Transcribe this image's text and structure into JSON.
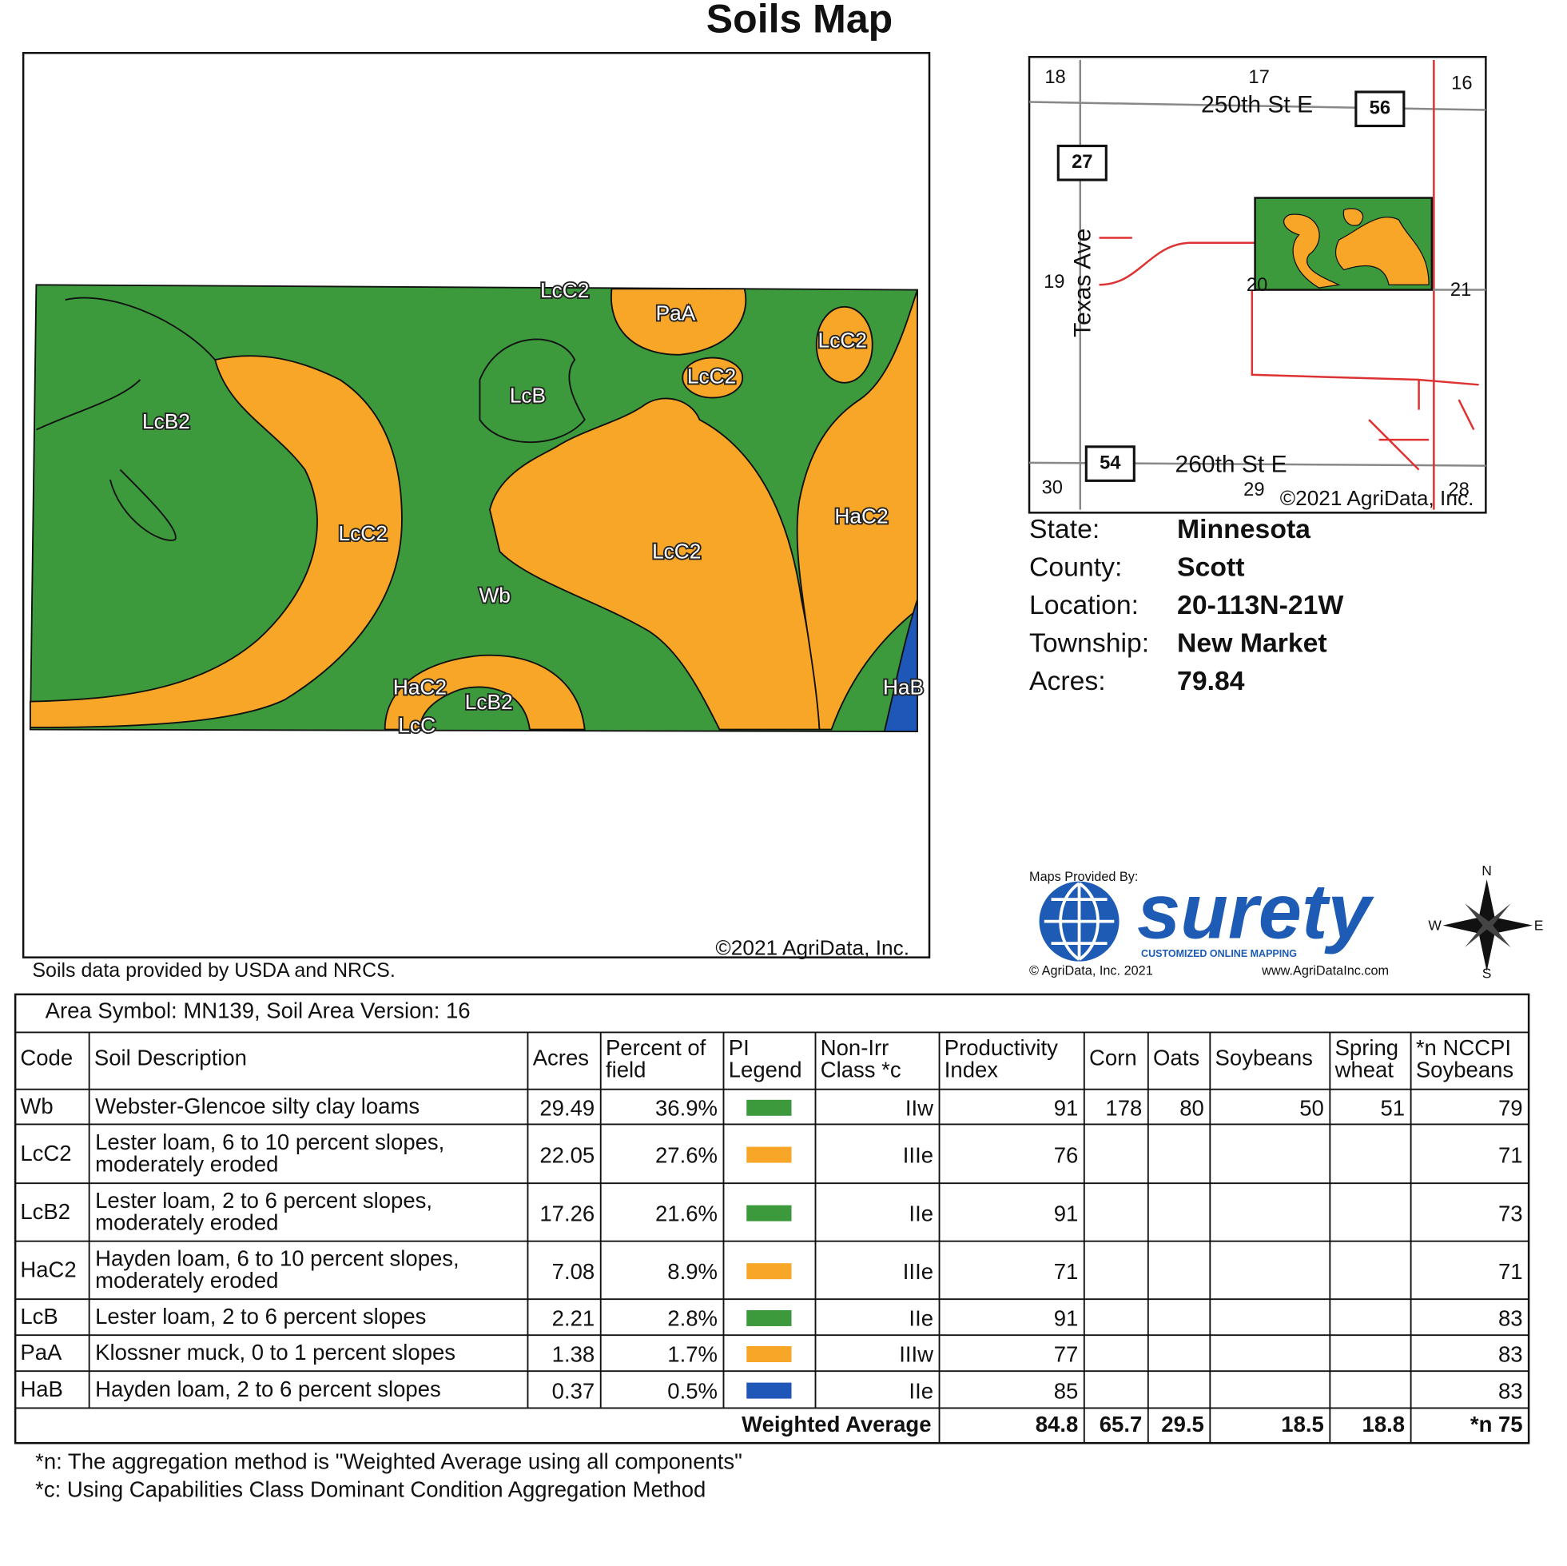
{
  "title": "Soils Map",
  "map": {
    "labels": [
      "LcC2",
      "PaA",
      "LcC2",
      "LcC2",
      "LcB",
      "LcB2",
      "HaC2",
      "LcC2",
      "LcC2",
      "Wb",
      "HaC2",
      "HaB",
      "LcB2",
      "LcC"
    ],
    "copyright": "©2021 AgriData, Inc."
  },
  "source_note": "Soils data provided by USDA and NRCS.",
  "locator": {
    "sections": [
      "18",
      "17",
      "16",
      "19",
      "20",
      "21",
      "30",
      "29",
      "28"
    ],
    "roads": [
      "250th St E",
      "260th St E",
      "Texas Ave"
    ],
    "shields": [
      "56",
      "27",
      "54"
    ],
    "copyright": "©2021 AgriData, Inc."
  },
  "info": {
    "rows": [
      [
        "State:",
        "Minnesota"
      ],
      [
        "County:",
        "Scott"
      ],
      [
        "Location:",
        "20-113N-21W"
      ],
      [
        "Township:",
        "New Market"
      ],
      [
        "Acres:",
        "79.84"
      ]
    ]
  },
  "logo": {
    "caption": "Maps Provided By:",
    "brand": "surety",
    "tagline": "CUSTOMIZED ONLINE MAPPING",
    "copyright": "© AgriData, Inc. 2021",
    "url": "www.AgriDataInc.com"
  },
  "compass": {
    "n": "N",
    "e": "E",
    "s": "S",
    "w": "W"
  },
  "table": {
    "area": "Area Symbol: MN139, Soil Area Version: 16",
    "headers": [
      [
        "Code"
      ],
      [
        "Soil Description"
      ],
      [
        "Acres"
      ],
      [
        "Percent of",
        "field"
      ],
      [
        "PI",
        "Legend"
      ],
      [
        "Non-Irr",
        "Class *c"
      ],
      [
        "Productivity",
        "Index"
      ],
      [
        "Corn"
      ],
      [
        "Oats"
      ],
      [
        "Soybeans"
      ],
      [
        "Spring",
        "wheat"
      ],
      [
        "*n NCCPI",
        "Soybeans"
      ]
    ],
    "rows": [
      {
        "code": "Wb",
        "description": [
          "Webster-Glencoe silty clay loams"
        ],
        "acres": "29.49",
        "percent": "36.9%",
        "color": "#3c9a3c",
        "class": "IIw",
        "pi": "91",
        "corn": "178",
        "oats": "80",
        "soybeans": "50",
        "wheat": "51",
        "nccpi": "79"
      },
      {
        "code": "LcC2",
        "description": [
          "Lester loam, 6 to 10 percent slopes,",
          "moderately eroded"
        ],
        "acres": "22.05",
        "percent": "27.6%",
        "color": "#f7a628",
        "class": "IIIe",
        "pi": "76",
        "nccpi": "71"
      },
      {
        "code": "LcB2",
        "description": [
          "Lester loam, 2 to 6 percent slopes,",
          "moderately eroded"
        ],
        "acres": "17.26",
        "percent": "21.6%",
        "color": "#3c9a3c",
        "class": "IIe",
        "pi": "91",
        "nccpi": "73"
      },
      {
        "code": "HaC2",
        "description": [
          "Hayden loam, 6 to 10 percent slopes,",
          "moderately eroded"
        ],
        "acres": "7.08",
        "percent": "8.9%",
        "color": "#f7a628",
        "class": "IIIe",
        "pi": "71",
        "nccpi": "71"
      },
      {
        "code": "LcB",
        "description": [
          "Lester loam, 2 to 6 percent slopes"
        ],
        "acres": "2.21",
        "percent": "2.8%",
        "color": "#3c9a3c",
        "class": "IIe",
        "pi": "91",
        "nccpi": "83"
      },
      {
        "code": "PaA",
        "description": [
          "Klossner muck, 0 to 1 percent slopes"
        ],
        "acres": "1.38",
        "percent": "1.7%",
        "color": "#f7a628",
        "class": "IIIw",
        "pi": "77",
        "nccpi": "83"
      },
      {
        "code": "HaB",
        "description": [
          "Hayden loam, 2 to 6 percent slopes"
        ],
        "acres": "0.37",
        "percent": "0.5%",
        "color": "#1f57b8",
        "class": "IIe",
        "pi": "85",
        "nccpi": "83"
      }
    ],
    "footer": {
      "label": "Weighted Average",
      "pi": "84.8",
      "corn": "65.7",
      "oats": "29.5",
      "soybeans": "18.5",
      "wheat": "18.8",
      "nccpi": "*n 75"
    }
  },
  "footnotes": [
    "*n: The aggregation method is \"Weighted Average using all components\"",
    "*c: Using Capabilities Class Dominant Condition Aggregation Method"
  ]
}
